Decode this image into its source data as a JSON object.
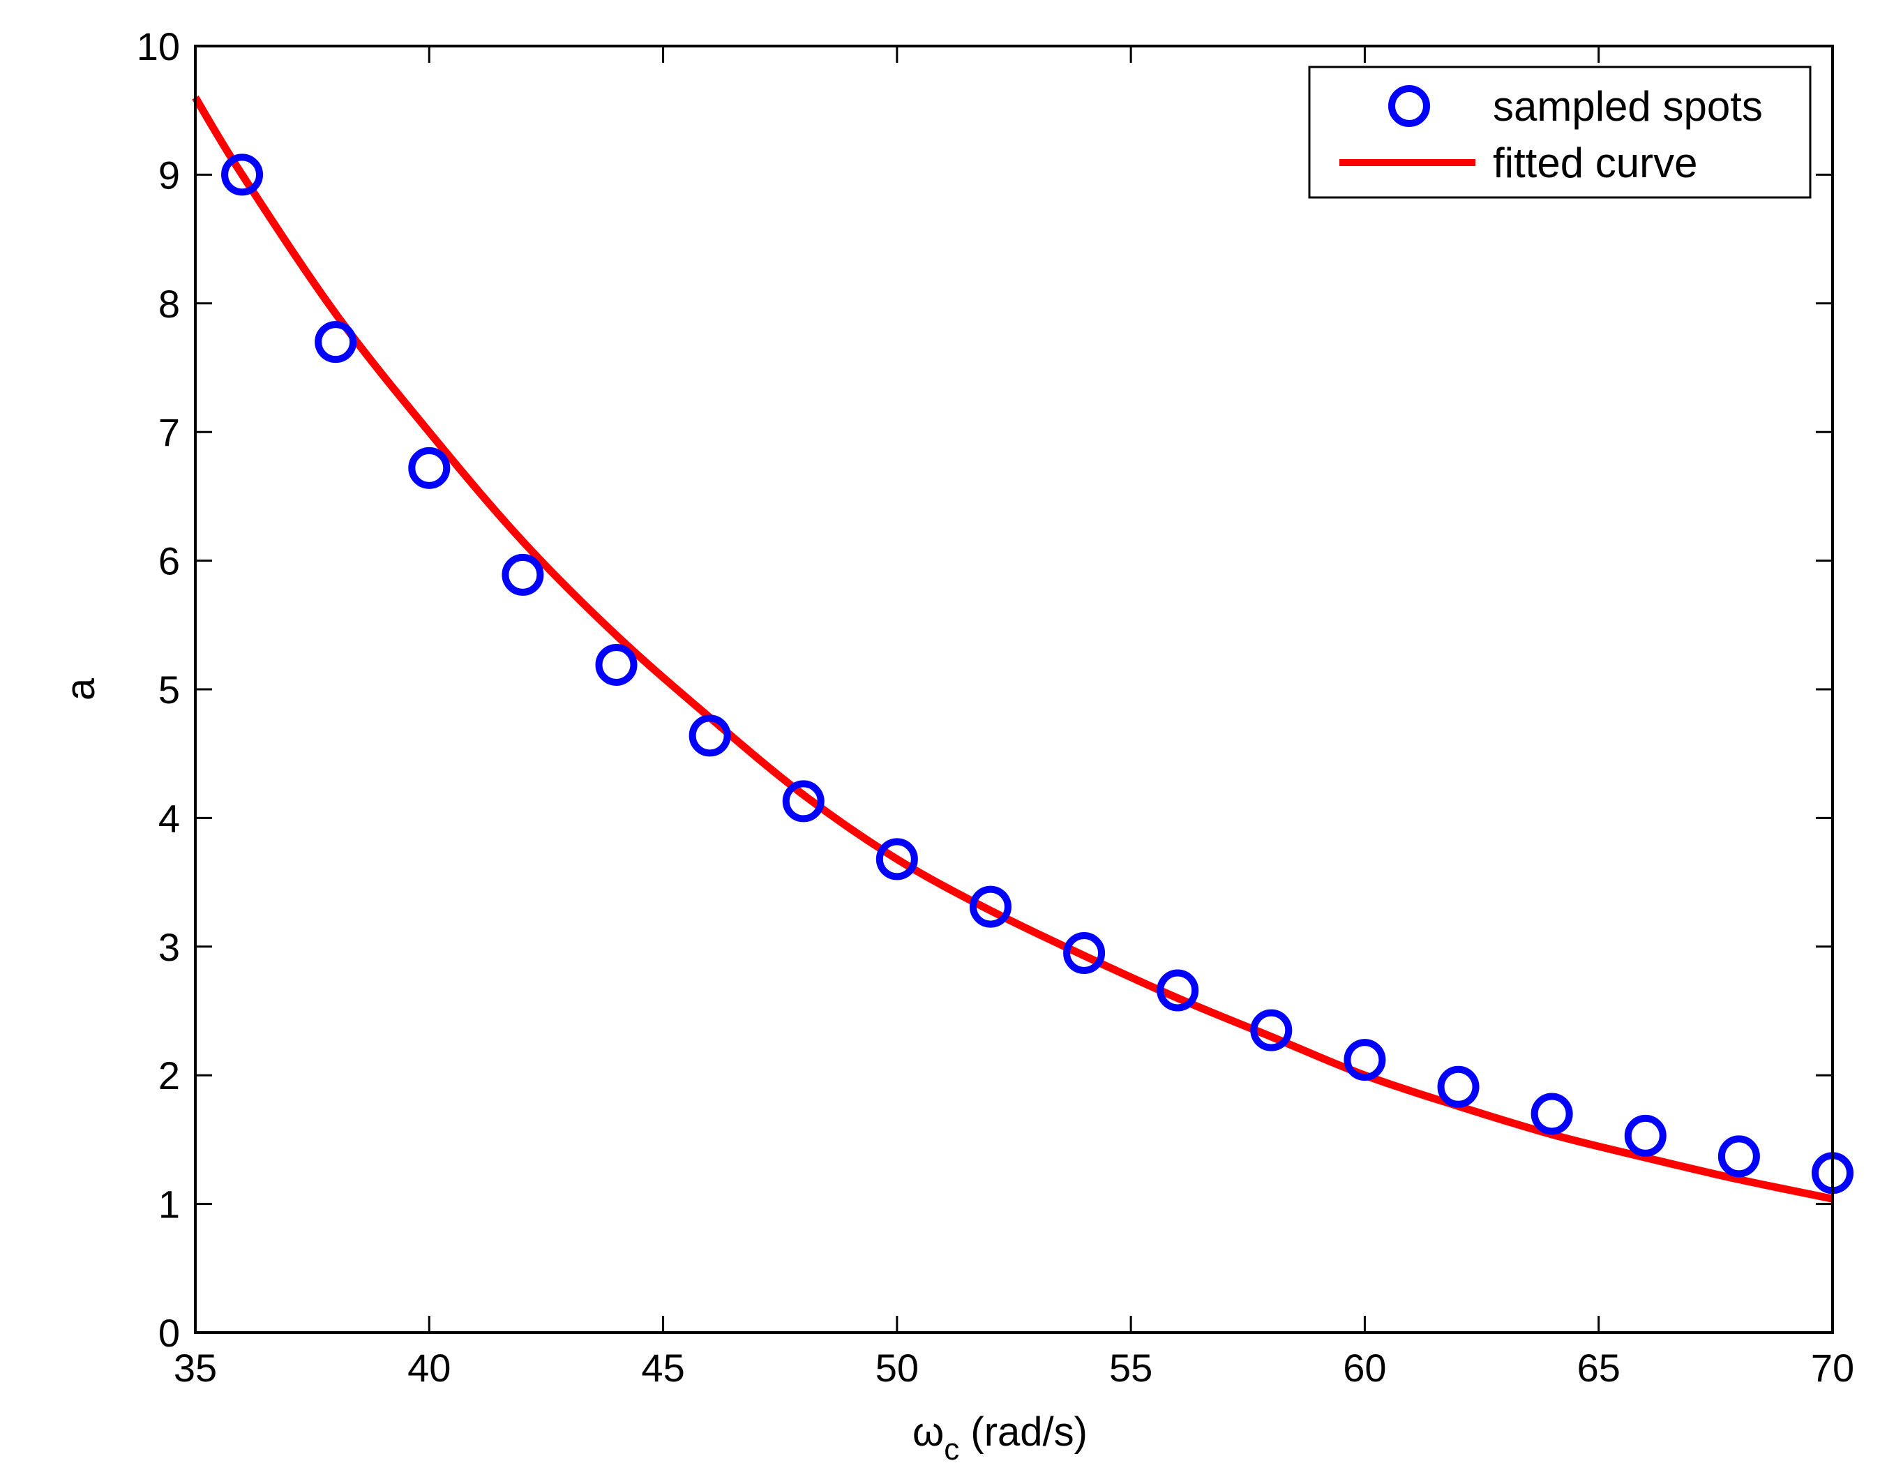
{
  "chart_data": {
    "type": "scatter",
    "title": "",
    "xlabel": {
      "symbol": "ω",
      "subscript": "c",
      "unit": " (rad/s)"
    },
    "ylabel": "a",
    "xlim": [
      35,
      70
    ],
    "ylim": [
      0,
      10
    ],
    "xticks": [
      35,
      40,
      45,
      50,
      55,
      60,
      65,
      70
    ],
    "yticks": [
      0,
      1,
      2,
      3,
      4,
      5,
      6,
      7,
      8,
      9,
      10
    ],
    "grid": false,
    "legend_position": "top-right",
    "series": [
      {
        "name": "sampled spots",
        "kind": "markers",
        "marker": "circle",
        "color": "#0000FF",
        "x": [
          36,
          38,
          40,
          42,
          44,
          46,
          48,
          50,
          52,
          54,
          56,
          58,
          60,
          62,
          64,
          66,
          68,
          70
        ],
        "y": [
          9.0,
          7.7,
          6.72,
          5.89,
          5.19,
          4.64,
          4.13,
          3.68,
          3.31,
          2.95,
          2.66,
          2.35,
          2.12,
          1.91,
          1.7,
          1.53,
          1.37,
          1.24
        ]
      },
      {
        "name": "fitted curve",
        "kind": "line",
        "color": "#FF0000",
        "x": [
          35,
          36,
          38,
          40,
          42,
          44,
          46,
          48,
          50,
          52,
          54,
          56,
          58,
          60,
          62,
          64,
          66,
          68,
          70
        ],
        "y": [
          9.6,
          9.0,
          7.92,
          7.0,
          6.15,
          5.42,
          4.78,
          4.18,
          3.68,
          3.28,
          2.93,
          2.6,
          2.3,
          2.0,
          1.76,
          1.54,
          1.36,
          1.19,
          1.04
        ]
      }
    ]
  }
}
